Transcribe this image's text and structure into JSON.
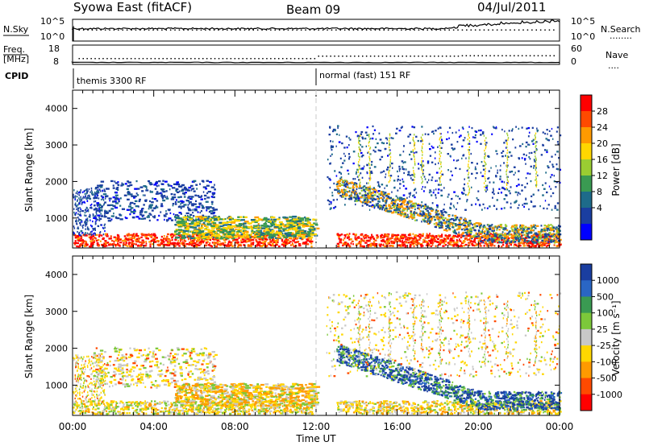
{
  "header": {
    "station": "Syowa East (fitACF)",
    "beam": "Beam 09",
    "date": "04/Jul/2011"
  },
  "strip_nsky": {
    "left_label": "N.Sky",
    "left_ticks": [
      "10^5",
      "10^0"
    ],
    "right_ticks": [
      "10^5",
      "10^0"
    ],
    "right_label": "N.Search",
    "right_legend": "........"
  },
  "strip_freq": {
    "left_label_line1": "Freq.",
    "left_label_line2": "[MHz]",
    "left_ticks": [
      "18",
      "8"
    ],
    "right_ticks": [
      "60",
      "0"
    ],
    "right_label": "Nave",
    "right_legend": "...."
  },
  "cpid": {
    "label": "CPID",
    "segments": [
      {
        "start_hour": 0,
        "text": "themis 3300 RF"
      },
      {
        "start_hour": 12,
        "text": "normal (fast) 151 RF"
      }
    ]
  },
  "chart_data": [
    {
      "type": "heatmap",
      "name": "power",
      "ylabel": "Slant Range [km]",
      "yticks": [
        1000,
        2000,
        3000,
        4000
      ],
      "ylim": [
        180,
        4500
      ],
      "xlim_hours": [
        0,
        24
      ],
      "xticks": [
        "00:00",
        "04:00",
        "08:00",
        "12:00",
        "16:00",
        "20:00",
        "00:00"
      ],
      "colorbar": {
        "label": "Power [dB]",
        "ticks": [
          "28",
          "24",
          "20",
          "16",
          "12",
          "8",
          "4"
        ],
        "colors": [
          "#ff0000",
          "#ff4a00",
          "#ff9a00",
          "#ffd700",
          "#9acd32",
          "#3a9a52",
          "#1e6b8a",
          "#1a3ea0",
          "#0000ff"
        ]
      }
    },
    {
      "type": "heatmap",
      "name": "velocity",
      "ylabel": "Slant Range [km]",
      "yticks": [
        1000,
        2000,
        3000,
        4000
      ],
      "ylim": [
        180,
        4500
      ],
      "xlim_hours": [
        0,
        24
      ],
      "xticks": [
        "00:00",
        "04:00",
        "08:00",
        "12:00",
        "16:00",
        "20:00",
        "00:00"
      ],
      "xlabel": "Time UT",
      "colorbar": {
        "label": "Velocity [m s⁻¹]",
        "ticks": [
          "1000",
          "500",
          "100",
          "25",
          "-25",
          "-100",
          "-500",
          "-1000"
        ],
        "colors": [
          "#1a3ea0",
          "#2a66c4",
          "#3a9a52",
          "#7cc83a",
          "#c8c8c8",
          "#ffd700",
          "#ff9a00",
          "#ff4a00",
          "#ff0000"
        ]
      }
    }
  ]
}
